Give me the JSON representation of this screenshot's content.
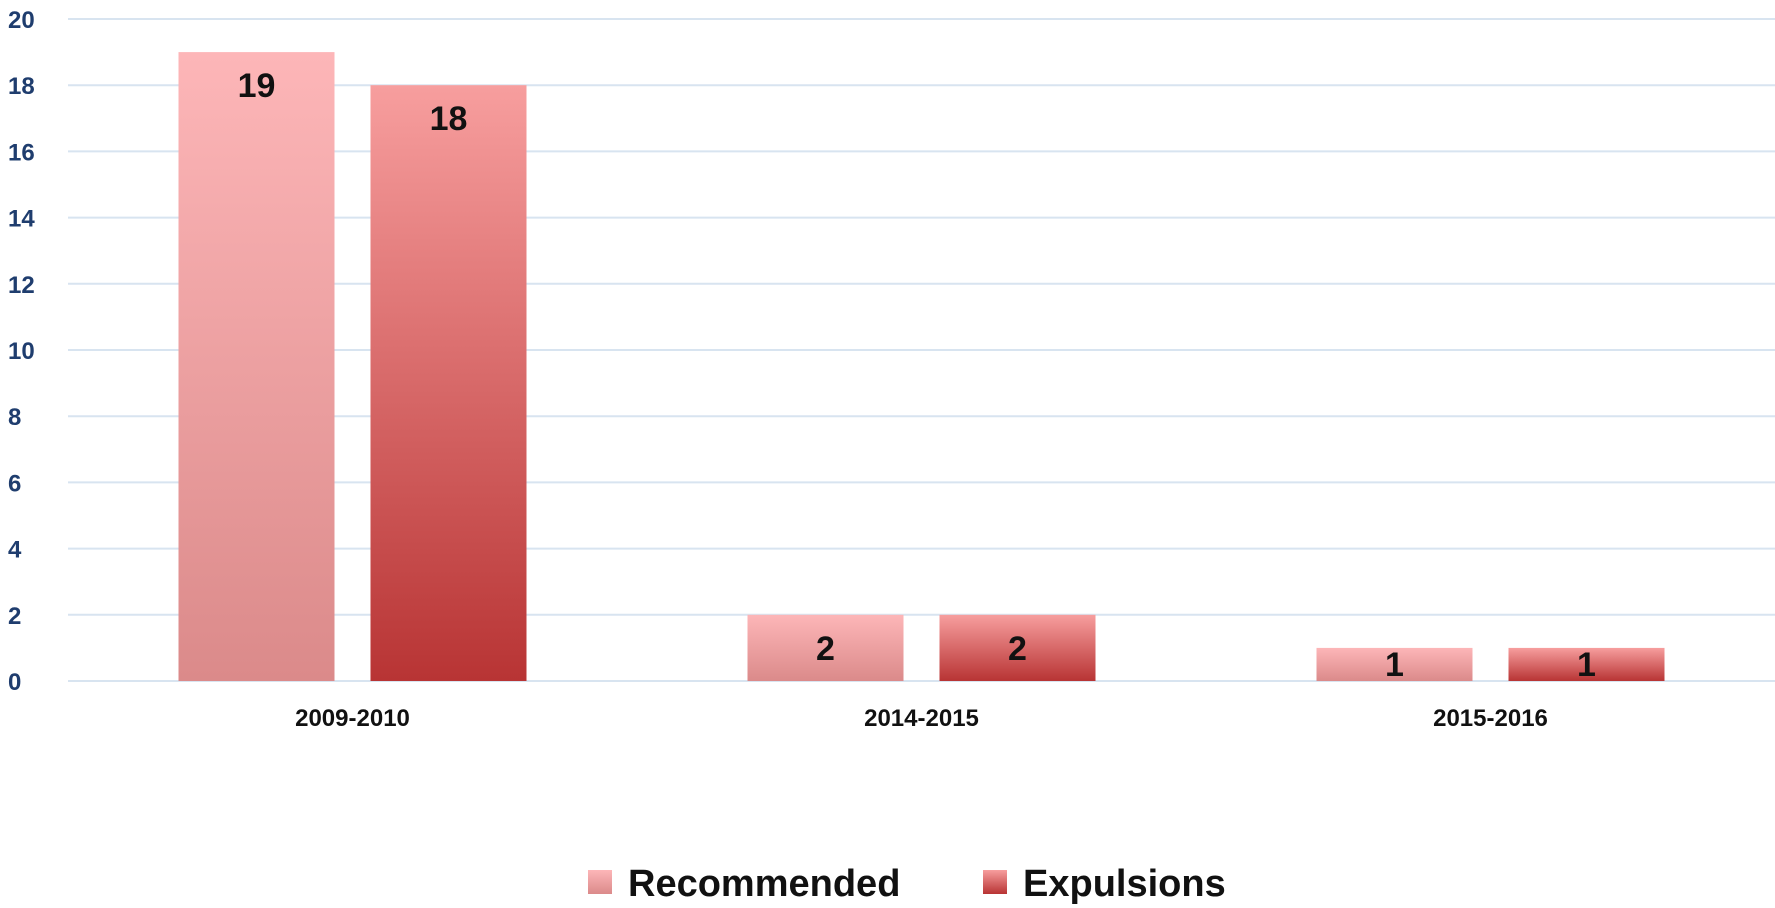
{
  "chart_data": {
    "type": "bar",
    "title": "",
    "xlabel": "",
    "ylabel": "",
    "categories": [
      "2009-2010",
      "2014-2015",
      "2015-2016"
    ],
    "series": [
      {
        "name": "Recommended",
        "values": [
          19,
          2,
          1
        ]
      },
      {
        "name": "Expulsions",
        "values": [
          18,
          2,
          1
        ]
      }
    ],
    "ylim": [
      0,
      20
    ],
    "yticks": [
      0,
      2,
      4,
      6,
      8,
      10,
      12,
      14,
      16,
      18,
      20
    ],
    "grid": true,
    "legend": "bottom-center",
    "data_labels": true,
    "colors": {
      "recommended_top": "#fdb6b8",
      "recommended_bottom": "#db8a8a",
      "expulsions_top": "#f79e9e",
      "expulsions_bottom": "#b83434",
      "gridline": "#d8e4f0",
      "ytick_text": "#1f3d6e"
    }
  }
}
